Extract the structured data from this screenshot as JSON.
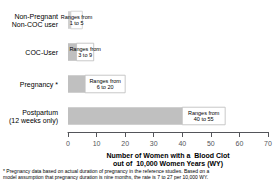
{
  "chart_data": {
    "type": "bar",
    "orientation": "horizontal",
    "categories": [
      "Non-Pregnant\nNon-COC user",
      "COC-User",
      "Pregnancy *",
      "Postpartum\n(12 weeks only)"
    ],
    "values": [
      5,
      9,
      20,
      55
    ],
    "range_starts": [
      1,
      3,
      6,
      40
    ],
    "annotations": [
      "Ranges from\n1 to 5",
      "Ranges from\n3 to 9",
      "Ranges from\n6 to 20",
      "Ranges from\n40 to 55"
    ],
    "colors": [
      "#d0d0d0",
      "#c0c0c0",
      "#c0c0c0",
      "#c0c0c0"
    ],
    "xlabel": "Number of Women with a  Blood Clot\nout of  10,000 Women Years (WY)",
    "xlim": [
      0,
      70
    ],
    "xticks": [
      0,
      10,
      20,
      30,
      40,
      50,
      60,
      70
    ],
    "footnote": "* Pregnancy data based on actual duration of pregnancy in the reference studies. Based on a\nmodel assumption that pregnancy duration is nine months, the rate is 7 to 27 per 10,000 WY.",
    "grid": false
  }
}
